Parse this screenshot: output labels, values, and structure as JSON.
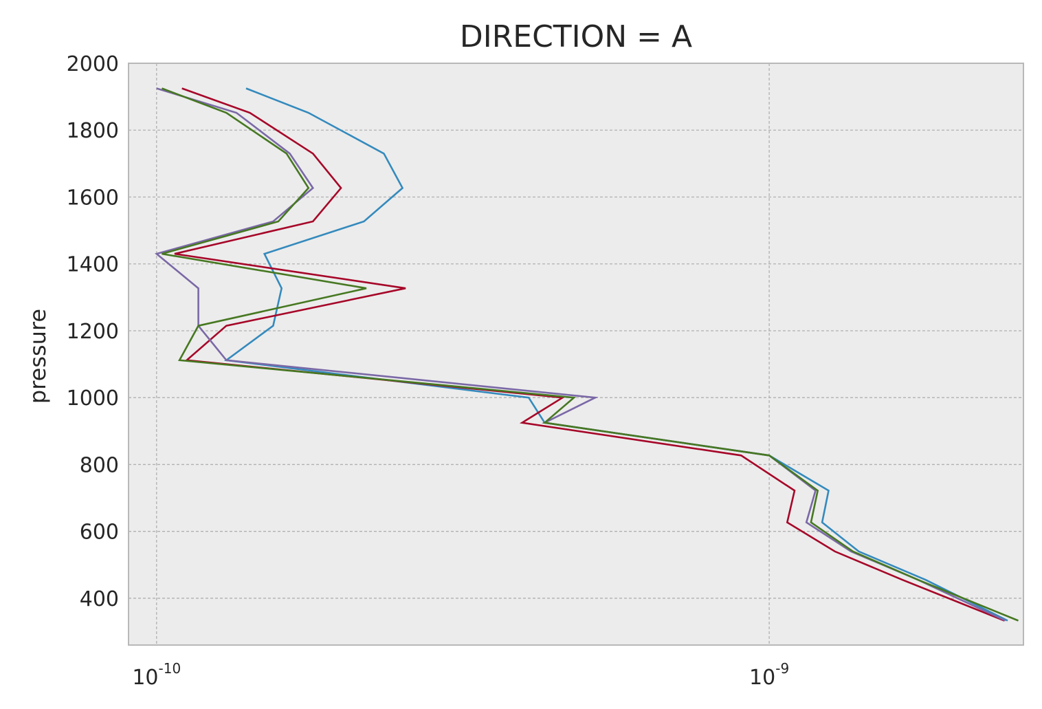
{
  "chart_data": {
    "type": "line",
    "title": "DIRECTION = A",
    "xlabel": "",
    "ylabel": "pressure",
    "xscale": "log",
    "xlim": [
      9e-11,
      2.6e-09
    ],
    "ylim": [
      260,
      2000
    ],
    "grid": true,
    "background": "#ececec",
    "xticks": [
      {
        "value": 1e-10,
        "base": "10",
        "exp": "-10"
      },
      {
        "value": 1e-09,
        "base": "10",
        "exp": "-9"
      }
    ],
    "yticks": [
      400,
      600,
      800,
      1000,
      1200,
      1400,
      1600,
      1800,
      2000
    ],
    "series": [
      {
        "color": "#348abd",
        "x": [
          1.4e-10,
          1.77e-10,
          2.35e-10,
          2.52e-10,
          2.18e-10,
          1.5e-10,
          1.6e-10,
          1.55e-10,
          1.3e-10,
          4.05e-10,
          4.3e-10,
          1e-09,
          1.25e-09,
          1.22e-09,
          1.4e-09,
          1.8e-09,
          2.45e-09
        ],
        "y": [
          1925,
          1852,
          1730,
          1627,
          1527,
          1430,
          1327,
          1215,
          1112,
          1000,
          925,
          827,
          722,
          627,
          540,
          455,
          333
        ]
      },
      {
        "color": "#a60628",
        "x": [
          1.1e-10,
          1.42e-10,
          1.8e-10,
          2e-10,
          1.8e-10,
          1.07e-10,
          2.55e-10,
          1.3e-10,
          1.12e-10,
          4.6e-10,
          3.95e-10,
          9e-10,
          1.1e-09,
          1.07e-09,
          1.28e-09,
          1.65e-09,
          2.42e-09
        ],
        "y": [
          1925,
          1852,
          1730,
          1627,
          1527,
          1430,
          1327,
          1215,
          1112,
          1000,
          925,
          827,
          722,
          627,
          540,
          455,
          333
        ]
      },
      {
        "color": "#7a68a6",
        "x": [
          1e-10,
          1.35e-10,
          1.65e-10,
          1.8e-10,
          1.55e-10,
          1e-10,
          1.17e-10,
          1.17e-10,
          1.3e-10,
          5.2e-10,
          4.3e-10,
          1e-09,
          1.19e-09,
          1.15e-09,
          1.36e-09,
          1.75e-09,
          2.43e-09
        ],
        "y": [
          1925,
          1852,
          1730,
          1627,
          1527,
          1430,
          1327,
          1215,
          1112,
          1000,
          925,
          827,
          722,
          627,
          540,
          455,
          333
        ]
      },
      {
        "color": "#467821",
        "x": [
          1.02e-10,
          1.3e-10,
          1.63e-10,
          1.77e-10,
          1.58e-10,
          1.02e-10,
          2.2e-10,
          1.17e-10,
          1.09e-10,
          4.8e-10,
          4.3e-10,
          1e-09,
          1.2e-09,
          1.17e-09,
          1.37e-09,
          1.75e-09,
          2.55e-09
        ],
        "y": [
          1925,
          1852,
          1730,
          1627,
          1527,
          1430,
          1327,
          1215,
          1112,
          1000,
          925,
          827,
          722,
          627,
          540,
          455,
          333
        ]
      }
    ]
  }
}
